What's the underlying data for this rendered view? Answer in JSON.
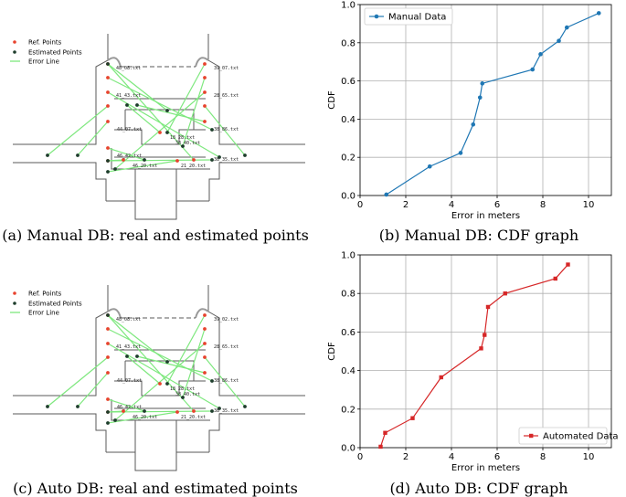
{
  "captions": {
    "a": "(a) Manual DB: real and estimated points",
    "b": "(b) Manual DB: CDF graph",
    "c": "(c) Auto DB: real and estimated points",
    "d": "(d) Auto DB: CDF graph"
  },
  "colors": {
    "ref": "#e8432e",
    "est": "#1e3d2c",
    "error_line": "#7ee87e",
    "walls": "#5a5a5a",
    "manual": "#1f77b4",
    "auto": "#d62728"
  },
  "map_legend": {
    "ref": "Ref. Points",
    "est": "Estimated Points",
    "line": "Error Line"
  },
  "map_labels_a": [
    "48_08.txt",
    "39_07.txt",
    "41_43.txt",
    "28_65.txt",
    "44_07.txt",
    "38_86.txt",
    "18_28.txt",
    "38_40.txt",
    "38_35.txt",
    "46_42.txt",
    "46_20.txt",
    "21_20.txt"
  ],
  "map_labels_c": [
    "48_08.txt",
    "39_02.txt",
    "41_43.txt",
    "28_65.txt",
    "44_07.txt",
    "38_86.txt",
    "18_28.txt",
    "38_40.txt",
    "38_35.txt",
    "46_42.txt",
    "46_20.txt",
    "21_20.txt"
  ],
  "chart_data": [
    {
      "type": "line",
      "title": "",
      "xlabel": "Error in meters",
      "ylabel": "CDF",
      "xlim": [
        0,
        11
      ],
      "ylim": [
        0,
        1.0
      ],
      "xticks": [
        0,
        2,
        4,
        6,
        8,
        10
      ],
      "yticks": [
        0.0,
        0.2,
        0.4,
        0.6,
        0.8,
        1.0
      ],
      "legend_position": "top-left",
      "series": [
        {
          "name": "Manual Data",
          "marker": "circle",
          "x": [
            1.15,
            3.05,
            4.4,
            4.95,
            5.25,
            5.35,
            7.55,
            7.9,
            8.7,
            9.05,
            10.45
          ],
          "y": [
            0.005,
            0.152,
            0.223,
            0.372,
            0.513,
            0.587,
            0.66,
            0.74,
            0.81,
            0.88,
            0.955
          ]
        }
      ]
    },
    {
      "type": "line",
      "title": "",
      "xlabel": "Error in meters",
      "ylabel": "CDF",
      "xlim": [
        0,
        11
      ],
      "ylim": [
        0,
        1.0
      ],
      "xticks": [
        0,
        2,
        4,
        6,
        8,
        10
      ],
      "yticks": [
        0.0,
        0.2,
        0.4,
        0.6,
        0.8,
        1.0
      ],
      "legend_position": "bottom-right",
      "series": [
        {
          "name": "Automated Data",
          "marker": "square",
          "x": [
            0.9,
            1.1,
            2.3,
            3.55,
            5.3,
            5.45,
            5.6,
            6.35,
            8.55,
            9.1
          ],
          "y": [
            0.005,
            0.077,
            0.153,
            0.365,
            0.515,
            0.585,
            0.73,
            0.8,
            0.877,
            0.95
          ]
        }
      ]
    }
  ]
}
